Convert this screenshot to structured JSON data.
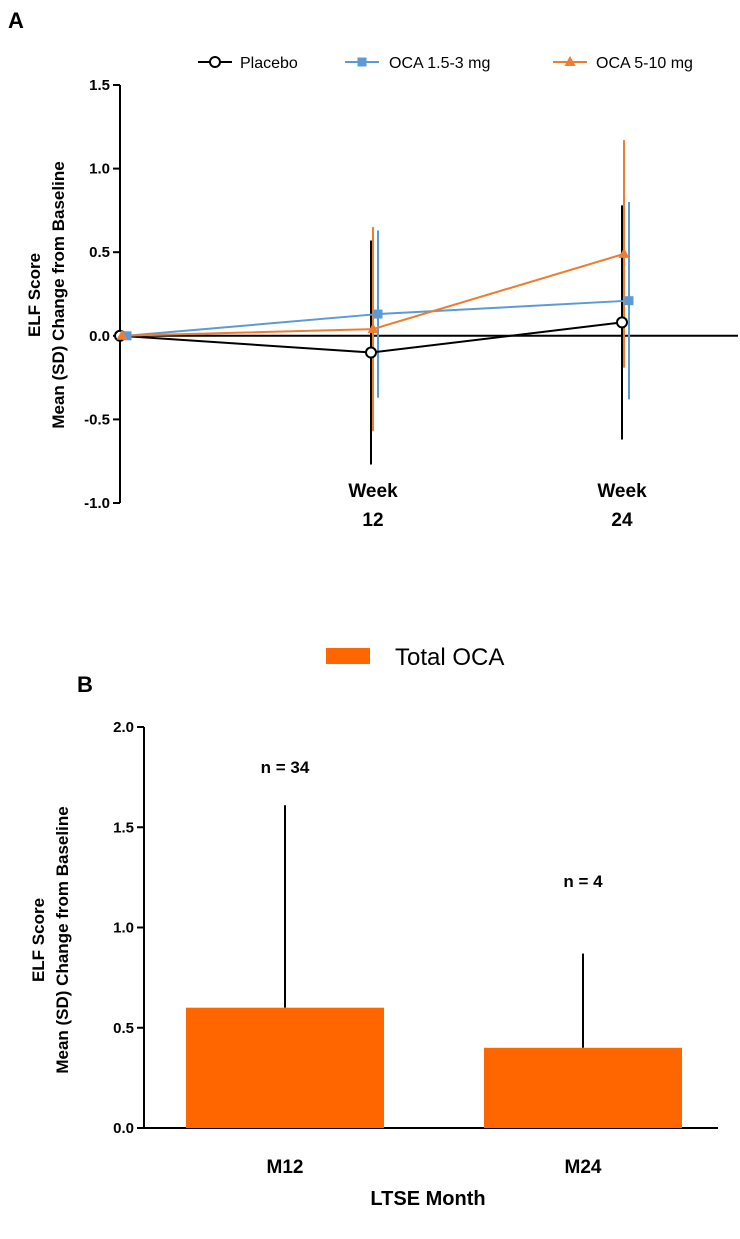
{
  "chart_data": [
    {
      "panel_label": "A",
      "type": "line",
      "ylabel_line1": "ELF Score",
      "ylabel_line2": "Mean (SD) Change from Baseline",
      "ylim": [
        -1.0,
        1.5
      ],
      "yticks": [
        "-1.0",
        "-0.5",
        "0.0",
        "0.5",
        "1.0",
        "1.5"
      ],
      "ytick_values": [
        -1.0,
        -0.5,
        0.0,
        0.5,
        1.0,
        1.5
      ],
      "xlabels": [
        {
          "line1": "Week",
          "line2": "12"
        },
        {
          "line1": "Week",
          "line2": "24"
        }
      ],
      "x": [
        0,
        12,
        24
      ],
      "series": [
        {
          "name": "Placebo",
          "color": "#000000",
          "marker": "open-circle",
          "values": [
            0.0,
            -0.1,
            0.08
          ],
          "sd": [
            0,
            0.67,
            0.7
          ]
        },
        {
          "name": "OCA 1.5-3 mg",
          "color": "#5b9bd5",
          "marker": "square",
          "values": [
            0.0,
            0.13,
            0.21
          ],
          "sd": [
            0,
            0.5,
            0.59
          ]
        },
        {
          "name": "OCA 5-10 mg",
          "color": "#ed7d31",
          "marker": "triangle",
          "values": [
            0.0,
            0.04,
            0.49
          ],
          "sd": [
            0,
            0.61,
            0.68
          ]
        }
      ],
      "legend_position": "top-right"
    },
    {
      "panel_label": "B",
      "type": "bar",
      "ylabel_line1": "ELF Score",
      "ylabel_line2": "Mean (SD) Change from Baseline",
      "xlabel": "LTSE Month",
      "categories": [
        "M12",
        "M24"
      ],
      "series": [
        {
          "name": "Total OCA",
          "color": "#ff6600",
          "values": [
            0.6,
            0.4
          ],
          "sd": [
            1.01,
            0.47
          ]
        }
      ],
      "n_labels": [
        "n = 34",
        "n = 4"
      ],
      "ylim": [
        0.0,
        2.0
      ],
      "yticks": [
        "0.0",
        "0.5",
        "1.0",
        "1.5",
        "2.0"
      ],
      "ytick_values": [
        0.0,
        0.5,
        1.0,
        1.5,
        2.0
      ],
      "legend_position": "top-center"
    }
  ]
}
